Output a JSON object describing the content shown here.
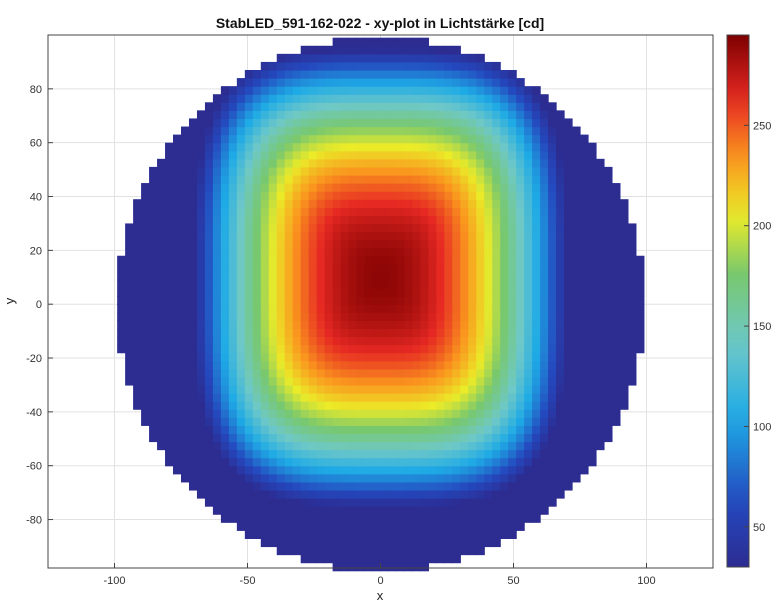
{
  "chart_data": {
    "type": "heatmap",
    "title": "StabLED_591-162-022 - xy-plot in Lichtstärke [cd]",
    "xlabel": "x",
    "ylabel": "y",
    "xlim": [
      -125,
      125
    ],
    "ylim": [
      -98,
      100
    ],
    "xticks": [
      -100,
      -50,
      0,
      50,
      100
    ],
    "yticks": [
      -80,
      -60,
      -40,
      -20,
      0,
      20,
      40,
      60,
      80
    ],
    "grid": true,
    "disk_radius": 99,
    "colormap": "jet",
    "colorbar": {
      "range": [
        30,
        295
      ],
      "ticks": [
        50,
        100,
        150,
        200,
        250
      ]
    },
    "intensity_model": {
      "peak_cd": 290,
      "floor_cd": 30,
      "peak_center": [
        0,
        10
      ],
      "half_width_x": 70,
      "half_width_y": 85,
      "exponent": 3.5
    },
    "colors": {
      "low": "#2b2f91",
      "high": "#7f0000",
      "grid": "#e2e2e2",
      "axis": "#444444"
    }
  }
}
